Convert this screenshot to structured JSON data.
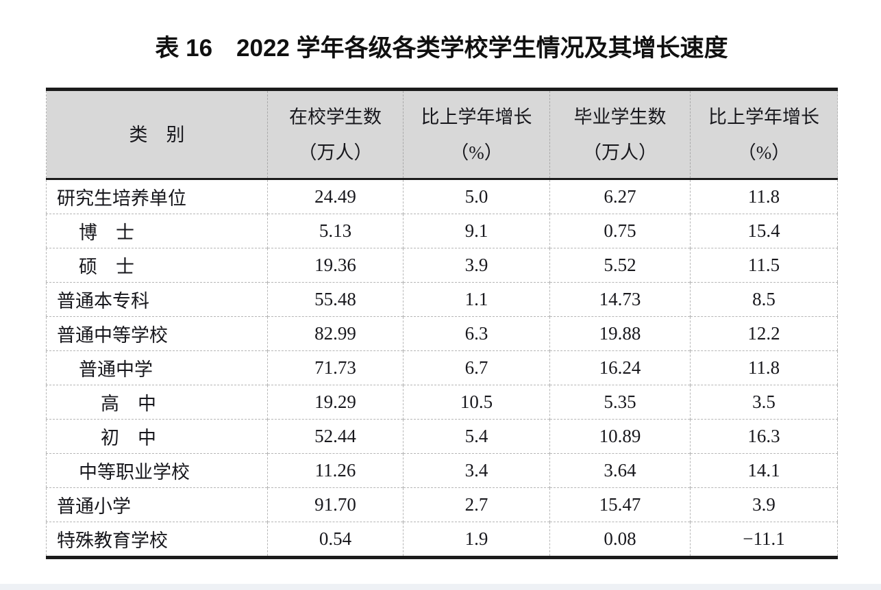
{
  "page": {
    "title": "表 16　2022 学年各级各类学校学生情况及其增长速度"
  },
  "table": {
    "columns": [
      {
        "label": "类　别",
        "unit": ""
      },
      {
        "label": "在校学生数",
        "unit": "（万人）"
      },
      {
        "label": "比上学年增长",
        "unit": "（%）"
      },
      {
        "label": "毕业学生数",
        "unit": "（万人）"
      },
      {
        "label": "比上学年增长",
        "unit": "（%）"
      }
    ],
    "rows": [
      {
        "label": "研究生培养单位",
        "values": [
          "24.49",
          "5.0",
          "6.27",
          "11.8"
        ]
      },
      {
        "label": "博　士",
        "values": [
          "5.13",
          "9.1",
          "0.75",
          "15.4"
        ]
      },
      {
        "label": "硕　士",
        "values": [
          "19.36",
          "3.9",
          "5.52",
          "11.5"
        ]
      },
      {
        "label": "普通本专科",
        "values": [
          "55.48",
          "1.1",
          "14.73",
          "8.5"
        ]
      },
      {
        "label": "普通中等学校",
        "values": [
          "82.99",
          "6.3",
          "19.88",
          "12.2"
        ]
      },
      {
        "label": "普通中学",
        "values": [
          "71.73",
          "6.7",
          "16.24",
          "11.8"
        ]
      },
      {
        "label": "高　中",
        "values": [
          "19.29",
          "10.5",
          "5.35",
          "3.5"
        ]
      },
      {
        "label": "初　中",
        "values": [
          "52.44",
          "5.4",
          "10.89",
          "16.3"
        ]
      },
      {
        "label": "中等职业学校",
        "values": [
          "11.26",
          "3.4",
          "3.64",
          "14.1"
        ]
      },
      {
        "label": "普通小学",
        "values": [
          "91.70",
          "2.7",
          "15.47",
          "3.9"
        ]
      },
      {
        "label": "特殊教育学校",
        "values": [
          "0.54",
          "1.9",
          "0.08",
          "−11.1"
        ]
      }
    ]
  },
  "colors": {
    "header_background": "#d8d8d8",
    "rule_black": "#1b1b1b",
    "dashed_border": "#b5b5b5",
    "text": "#17171c"
  }
}
